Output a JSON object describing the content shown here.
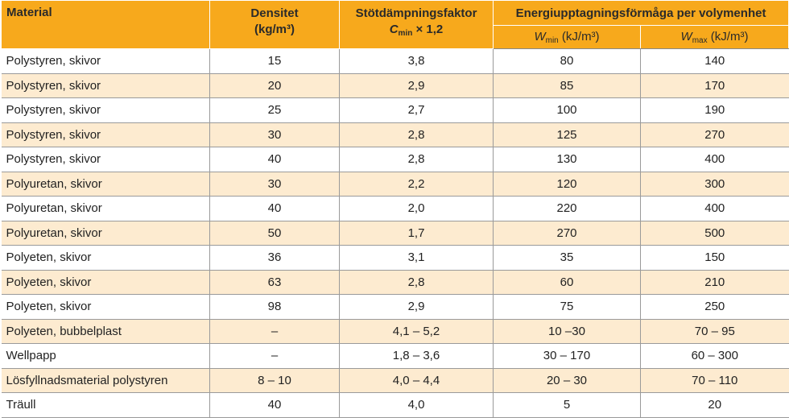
{
  "header": {
    "material": "Material",
    "densitet": "Densitet",
    "densitet_unit": "(kg/m³)",
    "stotdamp": "Stötdämpningsfaktor",
    "stotdamp_var": "C",
    "stotdamp_sub": "min",
    "stotdamp_suffix": " × 1,2",
    "energi": "Energiupptagningsförmåga per volymenhet",
    "wmin_var": "W",
    "wmin_sub": "min",
    "wmin_unit": " (kJ/m³)",
    "wmax_var": "W",
    "wmax_sub": "max",
    "wmax_unit": " (kJ/m³)"
  },
  "rows": [
    [
      "Polystyren, skivor",
      "15",
      "3,8",
      "80",
      "140"
    ],
    [
      "Polystyren, skivor",
      "20",
      "2,9",
      "85",
      "170"
    ],
    [
      "Polystyren, skivor",
      "25",
      "2,7",
      "100",
      "190"
    ],
    [
      "Polystyren, skivor",
      "30",
      "2,8",
      "125",
      "270"
    ],
    [
      "Polystyren, skivor",
      "40",
      "2,8",
      "130",
      "400"
    ],
    [
      "Polyuretan, skivor",
      "30",
      "2,2",
      "120",
      "300"
    ],
    [
      "Polyuretan, skivor",
      "40",
      "2,0",
      "220",
      "400"
    ],
    [
      "Polyuretan, skivor",
      "50",
      "1,7",
      "270",
      "500"
    ],
    [
      "Polyeten, skivor",
      "36",
      "3,1",
      "35",
      "150"
    ],
    [
      "Polyeten, skivor",
      "63",
      "2,8",
      "60",
      "210"
    ],
    [
      "Polyeten, skivor",
      "98",
      "2,9",
      "75",
      "250"
    ],
    [
      "Polyeten, bubbelplast",
      "–",
      "4,1 – 5,2",
      "10 –30",
      "70 – 95"
    ],
    [
      "Wellpapp",
      "–",
      "1,8 – 3,6",
      "30 – 170",
      "60 – 300"
    ],
    [
      "Lösfyllnadsmaterial polystyren",
      "8 – 10",
      "4,0 – 4,4",
      "20 – 30",
      "70 – 110"
    ],
    [
      "Träull",
      "40",
      "4,0",
      "5",
      "20"
    ]
  ],
  "colors": {
    "header_bg": "#f7a91c",
    "stripe_bg": "#fdebd0"
  }
}
